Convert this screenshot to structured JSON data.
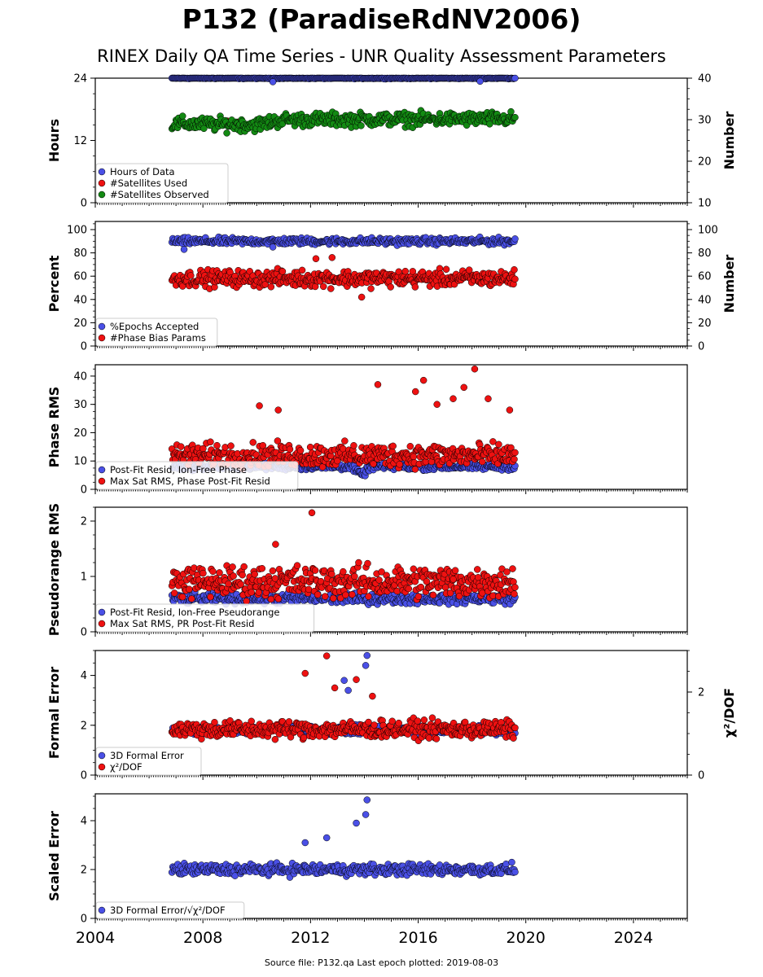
{
  "title": "P132 (ParadiseRdNV2006)",
  "subtitle": "RINEX Daily QA Time Series - UNR Quality Assessment Parameters",
  "footer": "Source file: P132.qa Last epoch plotted: 2019-08-03",
  "colors": {
    "blue": "#4a50e6",
    "red": "#ee1111",
    "green": "#138a13"
  },
  "chart_data": [
    {
      "type": "scatter",
      "panel": "hours-panel",
      "xlim": [
        2004,
        2026
      ],
      "xticks": [
        "2004",
        "2008",
        "2012",
        "2016",
        "2020",
        "2024"
      ],
      "ylabel": "Hours",
      "ylim": [
        0,
        24
      ],
      "yticks": [
        "0",
        "12",
        "24"
      ],
      "y2label": "Number",
      "y2lim": [
        10,
        40
      ],
      "y2ticks": [
        "10",
        "20",
        "30",
        "40"
      ],
      "legend_position": "lower-left",
      "series": [
        {
          "name": "Hours of Data",
          "color": "blue",
          "axis": "left",
          "start": 2006.85,
          "end": 2019.6,
          "level": 24.0,
          "spread": 0.1,
          "outliers": [
            [
              2010.6,
              23.3
            ],
            [
              2018.3,
              23.4
            ]
          ]
        },
        {
          "name": "#Satellites Used",
          "color": "red",
          "axis": "right",
          "start": 2008.5,
          "end": 2009.3,
          "level": 29.5,
          "spread": 0.3,
          "count": 3
        },
        {
          "name": "#Satellites Observed",
          "color": "green",
          "axis": "right",
          "start": 2006.85,
          "end": 2019.6,
          "level": 29.5,
          "spread": 1.4,
          "trend": [
            [
              2006.85,
              29.0
            ],
            [
              2010.0,
              28.8
            ],
            [
              2011.0,
              30.0
            ],
            [
              2019.6,
              30.2
            ]
          ]
        }
      ]
    },
    {
      "type": "scatter",
      "panel": "percent-panel",
      "xlim": [
        2004,
        2026
      ],
      "xticks": [
        "2004",
        "2008",
        "2012",
        "2016",
        "2020",
        "2024"
      ],
      "ylabel": "Percent",
      "ylim": [
        0,
        107
      ],
      "yticks": [
        "0",
        "20",
        "40",
        "60",
        "80",
        "100"
      ],
      "y2label": "Number",
      "y2lim": [
        0,
        107
      ],
      "y2ticks": [
        "0",
        "20",
        "40",
        "60",
        "80",
        "100"
      ],
      "legend_position": "lower-left",
      "series": [
        {
          "name": "%Epochs Accepted",
          "color": "blue",
          "axis": "left",
          "start": 2006.85,
          "end": 2019.6,
          "level": 90,
          "spread": 2.5,
          "outliers": [
            [
              2007.3,
              83
            ],
            [
              2010.6,
              85
            ]
          ]
        },
        {
          "name": "#Phase Bias Params",
          "color": "red",
          "axis": "right",
          "start": 2006.85,
          "end": 2019.6,
          "level": 58,
          "spread": 6,
          "outliers": [
            [
              2012.2,
              75
            ],
            [
              2012.8,
              76
            ],
            [
              2013.9,
              42
            ]
          ]
        }
      ]
    },
    {
      "type": "scatter",
      "panel": "phase-rms-panel",
      "xlim": [
        2004,
        2026
      ],
      "xticks": [
        "2004",
        "2008",
        "2012",
        "2016",
        "2020",
        "2024"
      ],
      "ylabel": "Phase RMS",
      "ylim": [
        0,
        44
      ],
      "yticks": [
        "0",
        "10",
        "20",
        "30",
        "40"
      ],
      "legend_position": "lower-left",
      "series": [
        {
          "name": "Post-Fit Resid, Ion-Free Phase",
          "color": "blue",
          "axis": "left",
          "start": 2006.85,
          "end": 2019.6,
          "level": 8,
          "spread": 1.0,
          "dip": [
            2013.9,
            5
          ]
        },
        {
          "name": "Max Sat RMS, Phase Post-Fit Resid",
          "color": "red",
          "axis": "left",
          "start": 2006.85,
          "end": 2019.6,
          "level": 12,
          "spread": 3.5,
          "outliers": [
            [
              2010.1,
              29.5
            ],
            [
              2010.8,
              28
            ],
            [
              2014.5,
              37
            ],
            [
              2015.9,
              34.5
            ],
            [
              2016.2,
              38.5
            ],
            [
              2016.7,
              30
            ],
            [
              2017.3,
              32
            ],
            [
              2017.7,
              36
            ],
            [
              2018.1,
              42.5
            ],
            [
              2018.6,
              32
            ],
            [
              2019.4,
              28
            ]
          ]
        }
      ]
    },
    {
      "type": "scatter",
      "panel": "pseudorange-rms-panel",
      "xlim": [
        2004,
        2026
      ],
      "xticks": [
        "2004",
        "2008",
        "2012",
        "2016",
        "2020",
        "2024"
      ],
      "ylabel": "Pseudorange RMS",
      "ylim": [
        0,
        2.25
      ],
      "yticks": [
        "0",
        "1",
        "2"
      ],
      "legend_position": "lower-left",
      "series": [
        {
          "name": "Post-Fit Resid, Ion-Free Pseudorange",
          "color": "blue",
          "axis": "left",
          "start": 2006.85,
          "end": 2019.6,
          "level": 0.6,
          "spread": 0.08
        },
        {
          "name": "Max Sat RMS, PR Post-Fit Resid",
          "color": "red",
          "axis": "left",
          "start": 2006.85,
          "end": 2019.6,
          "level": 0.9,
          "spread": 0.25,
          "outliers": [
            [
              2010.7,
              1.58
            ],
            [
              2012.05,
              2.15
            ],
            [
              2017.3,
              0.95
            ]
          ]
        }
      ]
    },
    {
      "type": "scatter",
      "panel": "formal-error-panel",
      "xlim": [
        2004,
        2026
      ],
      "xticks": [
        "2004",
        "2008",
        "2012",
        "2016",
        "2020",
        "2024"
      ],
      "ylabel": "Formal Error",
      "ylim": [
        0,
        5
      ],
      "yticks": [
        "0",
        "2",
        "4"
      ],
      "y2label": "χ²/DOF",
      "y2lim": [
        0,
        3
      ],
      "y2ticks": [
        "0",
        "2"
      ],
      "legend_position": "lower-left",
      "series": [
        {
          "name": "3D Formal Error",
          "color": "blue",
          "axis": "left",
          "start": 2006.85,
          "end": 2019.6,
          "level": 1.8,
          "spread": 0.15,
          "outliers": [
            [
              2013.25,
              3.8
            ],
            [
              2013.4,
              3.4
            ],
            [
              2014.1,
              4.8
            ],
            [
              2014.05,
              4.4
            ]
          ]
        },
        {
          "name": "χ²/DOF",
          "color": "red",
          "axis": "right",
          "start": 2006.85,
          "end": 2019.6,
          "level": 1.1,
          "spread": 0.18,
          "outliers": [
            [
              2012.6,
              2.87
            ],
            [
              2011.8,
              2.45
            ],
            [
              2013.7,
              2.3
            ],
            [
              2012.9,
              2.1
            ],
            [
              2014.3,
              1.9
            ]
          ]
        }
      ]
    },
    {
      "type": "scatter",
      "panel": "scaled-error-panel",
      "xlim": [
        2004,
        2026
      ],
      "xticks": [
        "2004",
        "2008",
        "2012",
        "2016",
        "2020",
        "2024"
      ],
      "ylabel": "Scaled Error",
      "ylim": [
        0,
        5.1
      ],
      "yticks": [
        "0",
        "2",
        "4"
      ],
      "legend_position": "lower-left",
      "series": [
        {
          "name": "3D Formal Error/√χ²/DOF",
          "color": "blue",
          "axis": "left",
          "start": 2006.85,
          "end": 2019.6,
          "level": 2.0,
          "spread": 0.2,
          "outliers": [
            [
              2014.1,
              4.85
            ],
            [
              2014.05,
              4.25
            ],
            [
              2013.7,
              3.9
            ],
            [
              2011.8,
              3.1
            ],
            [
              2012.6,
              3.3
            ]
          ]
        }
      ]
    }
  ]
}
